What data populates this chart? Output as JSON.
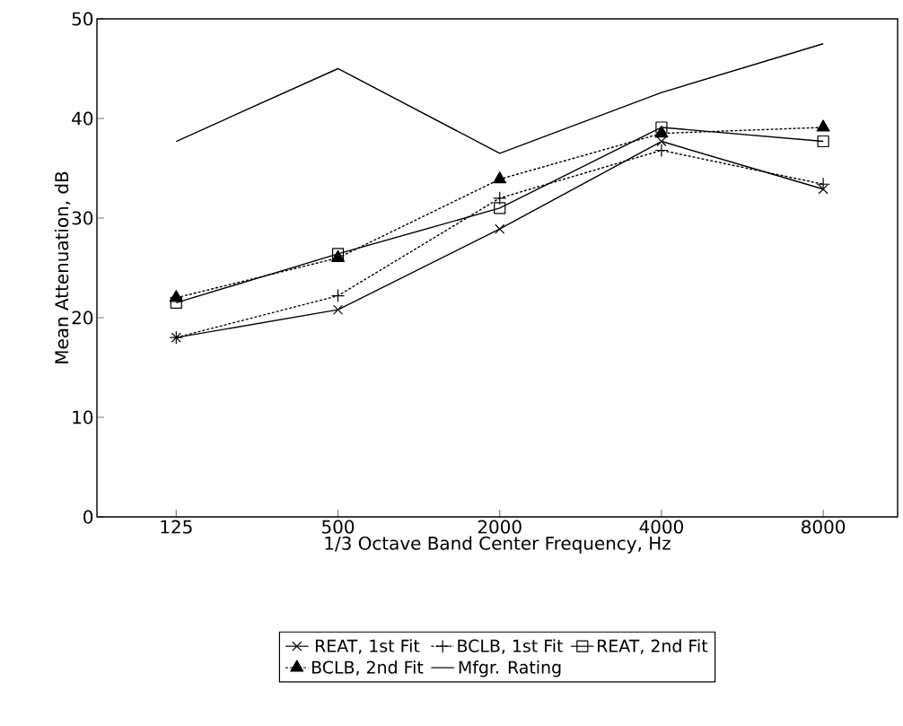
{
  "chart_data": {
    "type": "line",
    "xlabel": "1/3 Octave Band Center Frequency,  Hz",
    "ylabel": "Mean Attenuation,  dB",
    "categories": [
      "125",
      "500",
      "2000",
      "4000",
      "8000"
    ],
    "ylim": [
      0,
      50
    ],
    "yticks": [
      0,
      10,
      20,
      30,
      40,
      50
    ],
    "grid": false,
    "legend": "bottom",
    "series": [
      {
        "name": "REAT,  1st Fit",
        "color": "#000000",
        "marker": "cross",
        "line_style": "solid",
        "values": [
          18.0,
          20.8,
          28.9,
          37.7,
          32.9
        ]
      },
      {
        "name": "BCLB,  1st Fit",
        "color": "#000000",
        "marker": "plus",
        "line_style": "dotted",
        "values": [
          18.0,
          22.2,
          32.0,
          36.8,
          33.4
        ]
      },
      {
        "name": "REAT,  2nd Fit",
        "color": "#000000",
        "marker": "square",
        "line_style": "solid",
        "values": [
          21.5,
          26.4,
          31.0,
          39.1,
          37.7
        ]
      },
      {
        "name": "BCLB,  2nd Fit",
        "color": "#000000",
        "marker": "triangle",
        "line_style": "dotted",
        "values": [
          22.0,
          26.0,
          33.9,
          38.5,
          39.1
        ]
      },
      {
        "name": "Mfgr. Rating",
        "color": "#000000",
        "marker": "none",
        "line_style": "solid",
        "values": [
          37.7,
          45.0,
          36.5,
          42.6,
          47.5
        ]
      }
    ]
  }
}
